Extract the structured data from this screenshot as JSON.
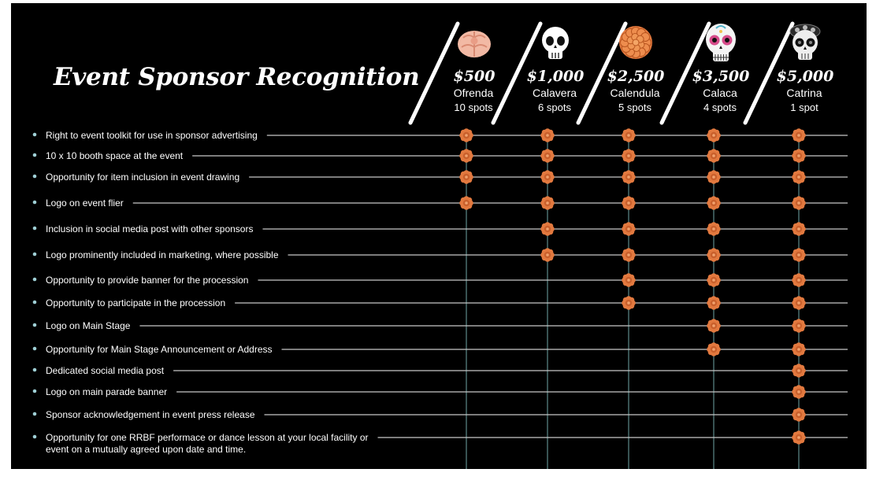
{
  "title": "Event Sponsor Recognition",
  "colors": {
    "background": "#000000",
    "text": "#ffffff",
    "marigold": "#e2793f",
    "column_line": "#4a6f6f",
    "row_line": "#c8c8c8",
    "bullet": "#9fd0d6"
  },
  "tiers": [
    {
      "price": "$500",
      "name": "Ofrenda",
      "spots": "10 spots",
      "icon": "pan-de-muerto-icon"
    },
    {
      "price": "$1,000",
      "name": "Calavera",
      "spots": "6 spots",
      "icon": "skull-icon"
    },
    {
      "price": "$2,500",
      "name": "Calendula",
      "spots": "5 spots",
      "icon": "marigold-icon"
    },
    {
      "price": "$3,500",
      "name": "Calaca",
      "spots": "4 spots",
      "icon": "sugar-skull-icon"
    },
    {
      "price": "$5,000",
      "name": "Catrina",
      "spots": "1 spot",
      "icon": "catrina-skull-icon"
    }
  ],
  "benefits": [
    {
      "text": [
        "Right to event toolkit for use in sponsor advertising"
      ],
      "tiers": [
        true,
        true,
        true,
        true,
        true
      ]
    },
    {
      "text": [
        "10 x 10 booth space at the event"
      ],
      "tiers": [
        true,
        true,
        true,
        true,
        true
      ]
    },
    {
      "text": [
        "Opportunity for item inclusion in event drawing"
      ],
      "tiers": [
        true,
        true,
        true,
        true,
        true
      ]
    },
    {
      "text": [
        "Logo on event flier"
      ],
      "tiers": [
        true,
        true,
        true,
        true,
        true
      ]
    },
    {
      "text": [
        "Inclusion in social media post with other sponsors"
      ],
      "tiers": [
        false,
        true,
        true,
        true,
        true
      ]
    },
    {
      "text": [
        "Logo prominently included in marketing, where possible"
      ],
      "tiers": [
        false,
        true,
        true,
        true,
        true
      ]
    },
    {
      "text": [
        "Opportunity to provide banner for the procession"
      ],
      "tiers": [
        false,
        false,
        true,
        true,
        true
      ]
    },
    {
      "text": [
        "Opportunity to participate in the procession"
      ],
      "tiers": [
        false,
        false,
        true,
        true,
        true
      ]
    },
    {
      "text": [
        "Logo on Main Stage"
      ],
      "tiers": [
        false,
        false,
        false,
        true,
        true
      ]
    },
    {
      "text": [
        "Opportunity for Main Stage Announcement or Address"
      ],
      "tiers": [
        false,
        false,
        false,
        true,
        true
      ]
    },
    {
      "text": [
        "Dedicated social media post"
      ],
      "tiers": [
        false,
        false,
        false,
        false,
        true
      ]
    },
    {
      "text": [
        "Logo on main parade banner"
      ],
      "tiers": [
        false,
        false,
        false,
        false,
        true
      ]
    },
    {
      "text": [
        "Sponsor acknowledgement in event press release"
      ],
      "tiers": [
        false,
        false,
        false,
        false,
        true
      ]
    },
    {
      "text": [
        "Opportunity for one RRBF performace or dance lesson at your local facility or",
        "event on a mutually agreed upon date and time."
      ],
      "tiers": [
        false,
        false,
        false,
        false,
        true
      ]
    }
  ]
}
